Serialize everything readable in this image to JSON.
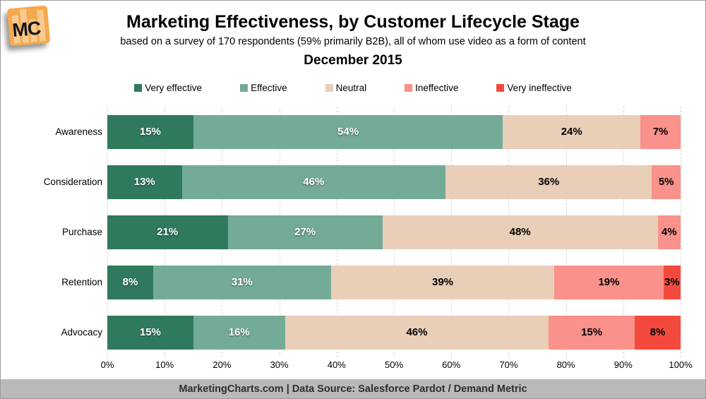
{
  "logo": {
    "text": "MC"
  },
  "header": {
    "title": "Marketing Effectiveness, by Customer Lifecycle Stage",
    "subtitle": "based on a survey of 170 respondents (59% primarily B2B), all of whom use video as a form of content",
    "date": "December 2015"
  },
  "colors": {
    "very_effective": "#2F7A5C",
    "effective": "#74AB97",
    "neutral": "#E9CEB8",
    "ineffective": "#FA918A",
    "very_ineffective": "#F44A3E",
    "gridline": "#D8D8D8",
    "footer_bg": "#B9B9B9",
    "logo_bg": "#F5A94D"
  },
  "chart_data": {
    "type": "bar",
    "orientation": "horizontal",
    "stacked": true,
    "title": "Marketing Effectiveness, by Customer Lifecycle Stage",
    "subtitle": "based on a survey of 170 respondents (59% primarily B2B), all of whom use video as a form of content",
    "period": "December 2015",
    "categories": [
      "Awareness",
      "Consideration",
      "Purchase",
      "Retention",
      "Advocacy"
    ],
    "series": [
      {
        "name": "Very effective",
        "color": "#2F7A5C",
        "label_style": "light",
        "values": [
          15,
          13,
          21,
          8,
          15
        ]
      },
      {
        "name": "Effective",
        "color": "#74AB97",
        "label_style": "light",
        "values": [
          54,
          46,
          27,
          31,
          16
        ]
      },
      {
        "name": "Neutral",
        "color": "#E9CEB8",
        "label_style": "dark",
        "values": [
          24,
          36,
          48,
          39,
          46
        ]
      },
      {
        "name": "Ineffective",
        "color": "#FA918A",
        "label_style": "dark",
        "values": [
          7,
          5,
          4,
          19,
          15
        ]
      },
      {
        "name": "Very ineffective",
        "color": "#F44A3E",
        "label_style": "dark",
        "values": [
          0,
          0,
          0,
          3,
          8
        ]
      }
    ],
    "x_ticks": [
      "0%",
      "10%",
      "20%",
      "30%",
      "40%",
      "50%",
      "60%",
      "70%",
      "80%",
      "90%",
      "100%"
    ],
    "xlim": [
      0,
      100
    ],
    "value_suffix": "%",
    "grid": "vertical-dashed",
    "legend_position": "top"
  },
  "footer": {
    "text": "MarketingCharts.com | Data Source: Salesforce Pardot / Demand Metric"
  }
}
